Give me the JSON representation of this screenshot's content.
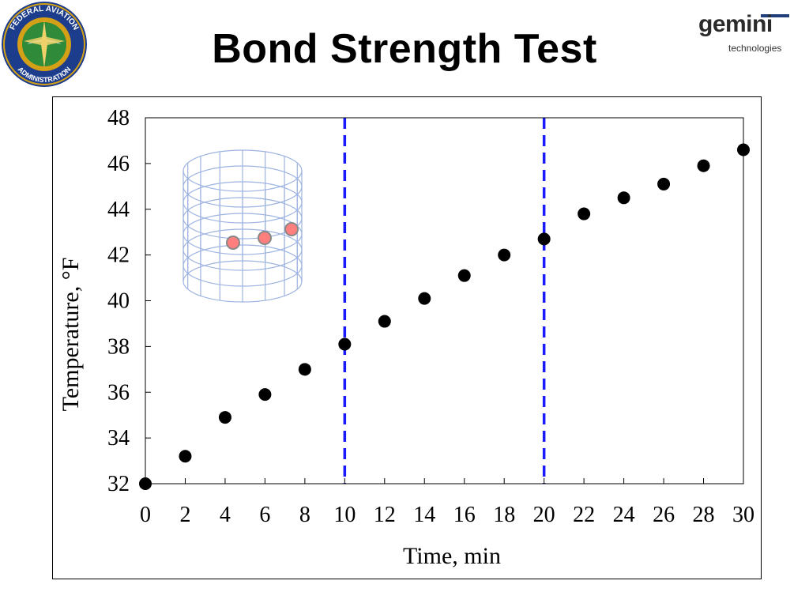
{
  "slide": {
    "title": "Bond Strength Test"
  },
  "logos": {
    "faa": {
      "icon": "faa-seal-icon",
      "text_top": "FEDERAL AVIATION",
      "text_bottom": "ADMINISTRATION",
      "colors": {
        "ring": "#1c3c8c",
        "gold": "#d4a017",
        "globe": "#2f8a3a"
      }
    },
    "gemini": {
      "icon": "gemini-logo-icon",
      "word": "gemini",
      "tagline": "technologies"
    }
  },
  "chart_data": {
    "type": "scatter",
    "xlabel": "Time, min",
    "ylabel": "Temperature, °F",
    "xlim": [
      0,
      30
    ],
    "ylim": [
      32,
      48
    ],
    "x_ticks": [
      0,
      2,
      4,
      6,
      8,
      10,
      12,
      14,
      16,
      18,
      20,
      22,
      24,
      26,
      28,
      30
    ],
    "y_ticks": [
      32,
      34,
      36,
      38,
      40,
      42,
      44,
      46,
      48
    ],
    "grid": false,
    "marker_color": "#000000",
    "points": [
      {
        "x": 0,
        "y": 32.0
      },
      {
        "x": 2,
        "y": 33.2
      },
      {
        "x": 4,
        "y": 34.9
      },
      {
        "x": 6,
        "y": 35.9
      },
      {
        "x": 8,
        "y": 37.0
      },
      {
        "x": 10,
        "y": 38.1
      },
      {
        "x": 12,
        "y": 39.1
      },
      {
        "x": 14,
        "y": 40.1
      },
      {
        "x": 16,
        "y": 41.1
      },
      {
        "x": 18,
        "y": 42.0
      },
      {
        "x": 20,
        "y": 42.7
      },
      {
        "x": 22,
        "y": 43.8
      },
      {
        "x": 24,
        "y": 44.5
      },
      {
        "x": 26,
        "y": 45.1
      },
      {
        "x": 28,
        "y": 45.9
      },
      {
        "x": 30,
        "y": 46.6
      }
    ],
    "reference_lines": [
      {
        "x": 10,
        "style": "dashed",
        "color": "#1a1aff"
      },
      {
        "x": 20,
        "style": "dashed",
        "color": "#1a1aff"
      }
    ],
    "inset": {
      "icon": "cylinder-mesh-icon",
      "mesh_color": "#9db3e0",
      "sensor_color": "#ff7f7f",
      "sensor_count": 3
    }
  }
}
